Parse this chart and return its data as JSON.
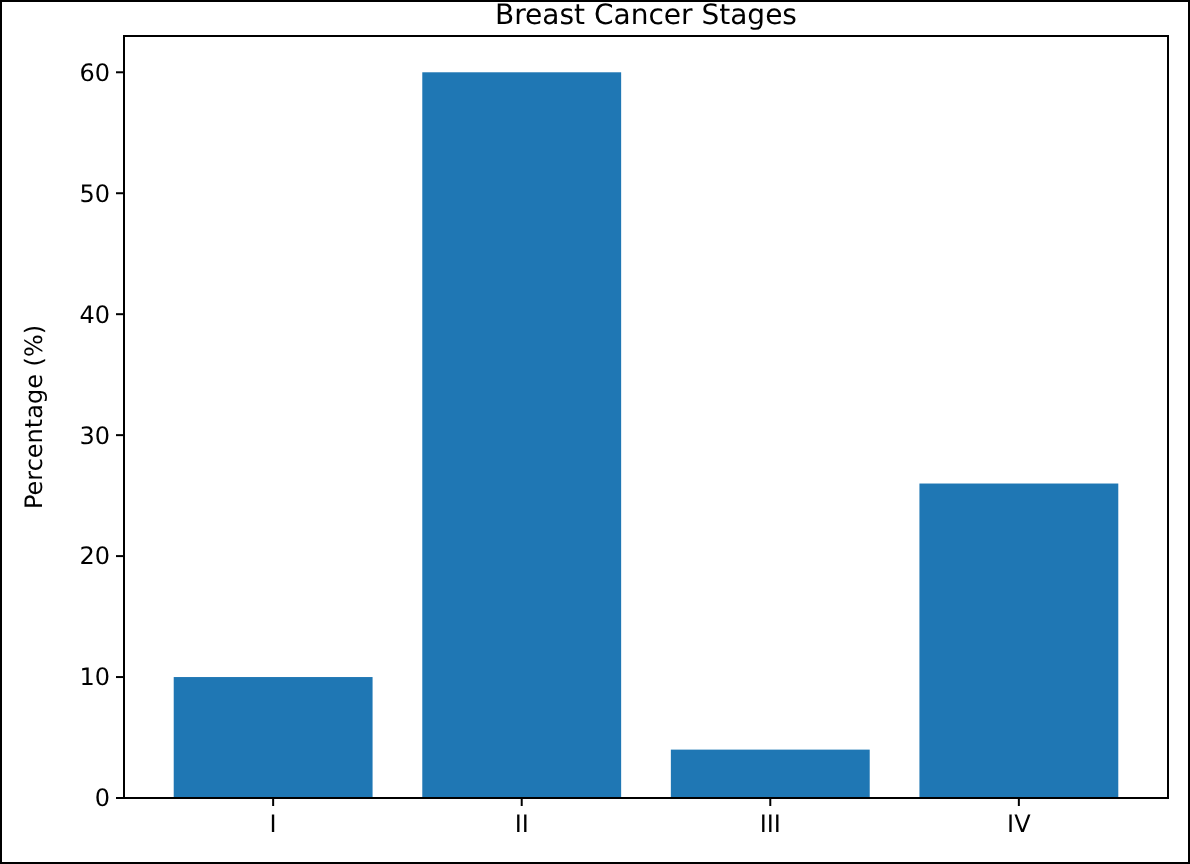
{
  "chart_data": {
    "type": "bar",
    "title": "Breast Cancer Stages",
    "ylabel": "Percentage (%)",
    "categories": [
      "I",
      "II",
      "III",
      "IV"
    ],
    "values": [
      10,
      60,
      4,
      26
    ],
    "color": "#1f77b4",
    "ylim": [
      0,
      63
    ],
    "yticks": [
      0,
      10,
      20,
      30,
      40,
      50,
      60
    ]
  }
}
